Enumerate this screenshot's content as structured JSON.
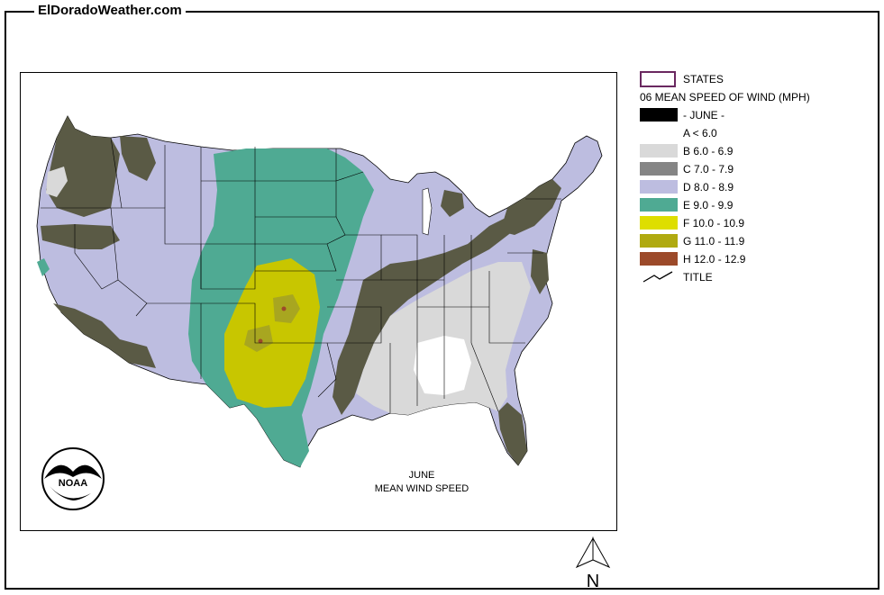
{
  "site": {
    "title": "ElDoradoWeather.com"
  },
  "map": {
    "caption_line1": "JUNE",
    "caption_line2": "MEAN WIND SPEED",
    "logo_text": "NOAA",
    "north_label": "N"
  },
  "legend": {
    "states_label": "STATES",
    "title": "06 MEAN SPEED OF WIND (MPH)",
    "month_label": "- JUNE -",
    "classes": [
      {
        "label": "A < 6.0",
        "color": "#ffffff"
      },
      {
        "label": "B 6.0 - 6.9",
        "color": "#d9d9d9"
      },
      {
        "label": "C 7.0 - 7.9",
        "color": "#858585"
      },
      {
        "label": "D 8.0 - 8.9",
        "color": "#bdbde0"
      },
      {
        "label": "E 9.0 - 9.9",
        "color": "#4faa93"
      },
      {
        "label": "F 10.0 - 10.9",
        "color": "#dede00"
      },
      {
        "label": "G 11.0 - 11.9",
        "color": "#b0aa10"
      },
      {
        "label": "H 12.0 - 12.9",
        "color": "#9c4a2a"
      }
    ],
    "title_line_label": "TITLE",
    "colors": {
      "month": "#000000",
      "dark_class": "#5a5a45",
      "states_border": "#6a2860"
    }
  }
}
